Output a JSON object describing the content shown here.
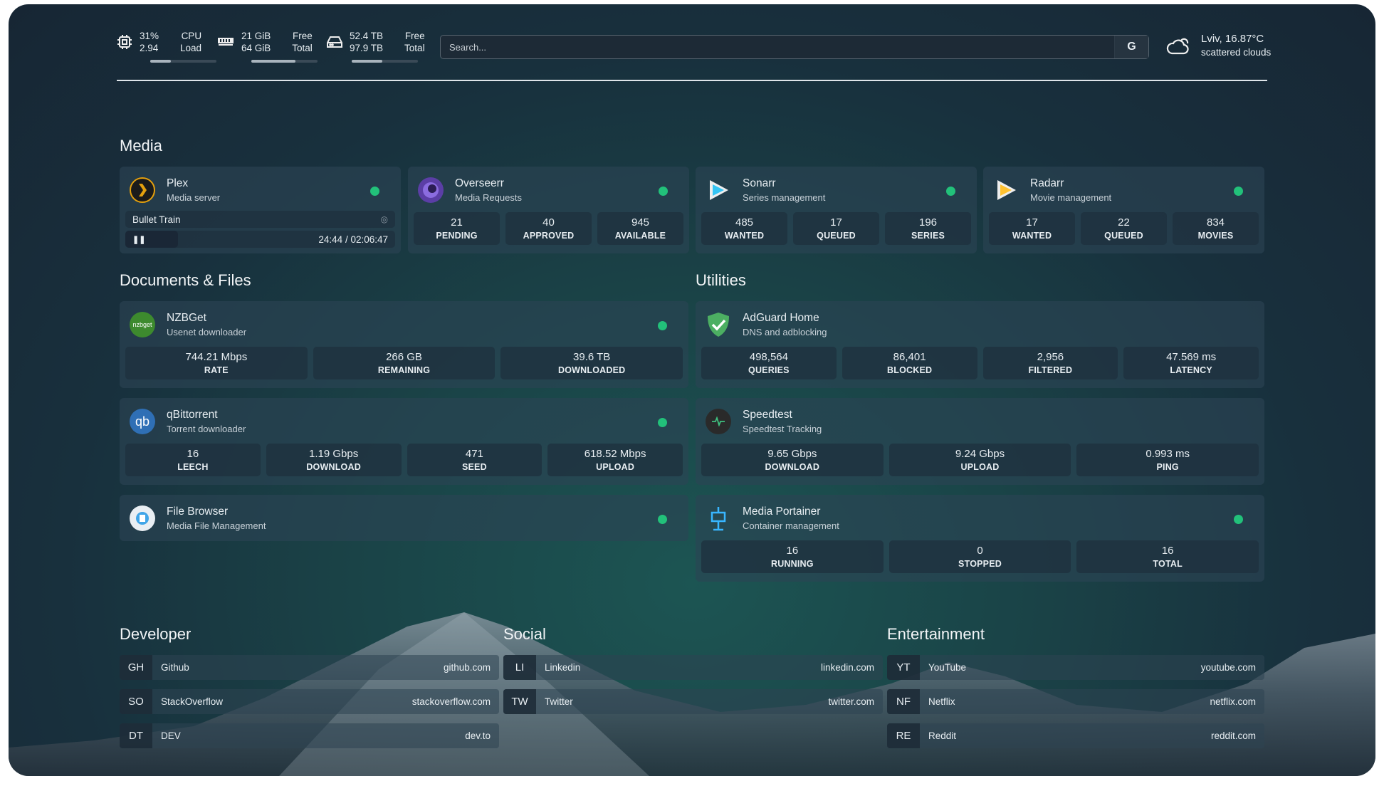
{
  "header": {
    "cpu": {
      "icon": "cpu-icon",
      "value1": "31%",
      "value2": "2.94",
      "label1": "CPU",
      "label2": "Load",
      "fill": 0.31
    },
    "memory": {
      "icon": "memory-icon",
      "value1": "21 GiB",
      "value2": "64 GiB",
      "label1": "Free",
      "label2": "Total",
      "fill": 0.67
    },
    "disk": {
      "icon": "disk-icon",
      "value1": "52.4 TB",
      "value2": "97.9 TB",
      "label1": "Free",
      "label2": "Total",
      "fill": 0.46
    },
    "search": {
      "placeholder": "Search...",
      "engine": "G"
    },
    "weather": {
      "icon": "cloud-icon",
      "location": "Lviv, 16.87°C",
      "condition": "scattered clouds"
    }
  },
  "sections": {
    "media": "Media",
    "docs": "Documents & Files",
    "utilities": "Utilities",
    "developer": "Developer",
    "social": "Social",
    "entertainment": "Entertainment"
  },
  "plex": {
    "name": "Plex",
    "desc": "Media server",
    "title": "Bullet Train",
    "time": "24:44 / 02:06:47",
    "progress": 0.195
  },
  "widgets": [
    {
      "id": "overseerr",
      "name": "Overseerr",
      "desc": "Media Requests",
      "icon": "overseerr-icon",
      "stats": [
        [
          "21",
          "PENDING"
        ],
        [
          "40",
          "APPROVED"
        ],
        [
          "945",
          "AVAILABLE"
        ]
      ]
    },
    {
      "id": "sonarr",
      "name": "Sonarr",
      "desc": "Series management",
      "icon": "sonarr-icon",
      "stats": [
        [
          "485",
          "WANTED"
        ],
        [
          "17",
          "QUEUED"
        ],
        [
          "196",
          "SERIES"
        ]
      ]
    },
    {
      "id": "radarr",
      "name": "Radarr",
      "desc": "Movie management",
      "icon": "radarr-icon",
      "stats": [
        [
          "17",
          "WANTED"
        ],
        [
          "22",
          "QUEUED"
        ],
        [
          "834",
          "MOVIES"
        ]
      ]
    },
    {
      "id": "nzbget",
      "name": "NZBGet",
      "desc": "Usenet downloader",
      "icon": "nzbget-icon",
      "stats": [
        [
          "744.21 Mbps",
          "RATE"
        ],
        [
          "266 GB",
          "REMAINING"
        ],
        [
          "39.6 TB",
          "DOWNLOADED"
        ]
      ]
    },
    {
      "id": "qbittorrent",
      "name": "qBittorrent",
      "desc": "Torrent downloader",
      "icon": "qbittorrent-icon",
      "stats": [
        [
          "16",
          "LEECH"
        ],
        [
          "1.19 Gbps",
          "DOWNLOAD"
        ],
        [
          "471",
          "SEED"
        ],
        [
          "618.52 Mbps",
          "UPLOAD"
        ]
      ]
    },
    {
      "id": "filebrowser",
      "name": "File Browser",
      "desc": "Media File Management",
      "icon": "filebrowser-icon",
      "stats": []
    },
    {
      "id": "adguard",
      "name": "AdGuard Home",
      "desc": "DNS and adblocking",
      "icon": "adguard-shield-icon",
      "stats": [
        [
          "498,564",
          "QUERIES"
        ],
        [
          "86,401",
          "BLOCKED"
        ],
        [
          "2,956",
          "FILTERED"
        ],
        [
          "47.569 ms",
          "LATENCY"
        ]
      ],
      "nodot": true
    },
    {
      "id": "speedtest",
      "name": "Speedtest",
      "desc": "Speedtest Tracking",
      "icon": "speedtest-icon",
      "stats": [
        [
          "9.65 Gbps",
          "DOWNLOAD"
        ],
        [
          "9.24 Gbps",
          "UPLOAD"
        ],
        [
          "0.993 ms",
          "PING"
        ]
      ],
      "nodot": true
    },
    {
      "id": "portainer",
      "name": "Media Portainer",
      "desc": "Container management",
      "icon": "portainer-icon",
      "stats": [
        [
          "16",
          "RUNNING"
        ],
        [
          "0",
          "STOPPED"
        ],
        [
          "16",
          "TOTAL"
        ]
      ]
    }
  ],
  "bookmarks": {
    "developer": [
      [
        "GH",
        "Github",
        "github.com"
      ],
      [
        "SO",
        "StackOverflow",
        "stackoverflow.com"
      ],
      [
        "DT",
        "DEV",
        "dev.to"
      ]
    ],
    "social": [
      [
        "LI",
        "Linkedin",
        "linkedin.com"
      ],
      [
        "TW",
        "Twitter",
        "twitter.com"
      ]
    ],
    "entertainment": [
      [
        "YT",
        "YouTube",
        "youtube.com"
      ],
      [
        "NF",
        "Netflix",
        "netflix.com"
      ],
      [
        "RE",
        "Reddit",
        "reddit.com"
      ]
    ]
  },
  "colors": {
    "status_online": "#22c17a",
    "plex": "#e5a00d",
    "adguard": "#4caf62"
  }
}
